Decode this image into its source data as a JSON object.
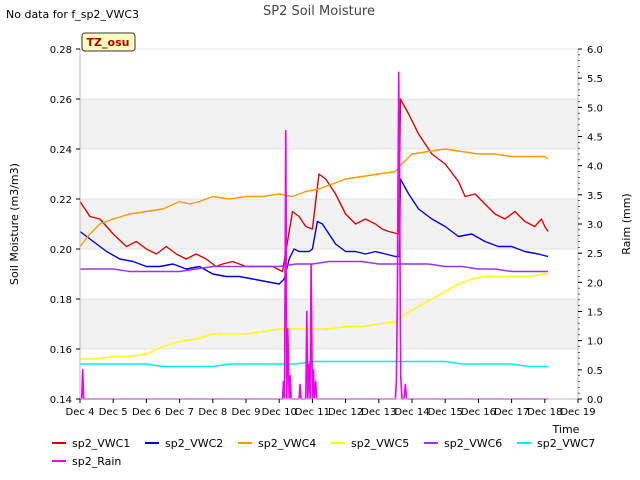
{
  "chart_data": {
    "type": "line",
    "title": "SP2 Soil Moisture",
    "note": "No data for f_sp2_VWC3",
    "site_badge": "TZ_osu",
    "xlabel": "Time",
    "ylabel": "Soil Moisture (m3/m3)",
    "y2label": "Raim (mm)",
    "xlim": [
      4,
      19
    ],
    "ylim": [
      0.14,
      0.28
    ],
    "y2lim": [
      0.0,
      6.0
    ],
    "xticks": [
      4,
      5,
      6,
      7,
      8,
      9,
      10,
      11,
      12,
      13,
      14,
      15,
      16,
      17,
      18,
      19
    ],
    "xtick_labels": [
      "Dec 4",
      "Dec 5",
      "Dec 6",
      "Dec 7",
      "Dec 8",
      "Dec 9",
      "Dec 10",
      "Dec 11",
      "Dec 12",
      "Dec 13",
      "Dec 14",
      "Dec 15",
      "Dec 16",
      "Dec 17",
      "Dec 18",
      "Dec 19"
    ],
    "yticks": [
      0.14,
      0.16,
      0.18,
      0.2,
      0.22,
      0.24,
      0.26,
      0.28
    ],
    "ytick_labels": [
      "0.14",
      "0.16",
      "0.18",
      "0.20",
      "0.22",
      "0.24",
      "0.26",
      "0.28"
    ],
    "y2ticks": [
      0.0,
      0.5,
      1.0,
      1.5,
      2.0,
      2.5,
      3.0,
      3.5,
      4.0,
      4.5,
      5.0,
      5.5,
      6.0
    ],
    "y2tick_labels": [
      "0.0",
      "0.5",
      "1.0",
      "1.5",
      "2.0",
      "2.5",
      "3.0",
      "3.5",
      "4.0",
      "4.5",
      "5.0",
      "5.5",
      "6.0"
    ],
    "grid": "horizontal bands",
    "legend_position": "bottom",
    "series": [
      {
        "name": "sp2_VWC1",
        "color": "#dd0000",
        "axis": "left",
        "x": [
          4.0,
          4.3,
          4.6,
          5.0,
          5.4,
          5.7,
          6.0,
          6.3,
          6.6,
          6.9,
          7.2,
          7.5,
          7.8,
          8.1,
          8.3,
          8.6,
          9.0,
          9.4,
          9.8,
          10.1,
          10.25,
          10.4,
          10.6,
          10.8,
          11.0,
          11.2,
          11.4,
          11.7,
          12.0,
          12.3,
          12.6,
          12.9,
          13.1,
          13.3,
          13.6,
          13.65,
          13.9,
          14.2,
          14.6,
          15.0,
          15.4,
          15.6,
          15.9,
          16.2,
          16.5,
          16.8,
          17.1,
          17.4,
          17.7,
          17.9,
          18.0,
          18.1
        ],
        "y": [
          0.219,
          0.213,
          0.212,
          0.206,
          0.201,
          0.203,
          0.2,
          0.198,
          0.201,
          0.198,
          0.196,
          0.198,
          0.196,
          0.193,
          0.194,
          0.195,
          0.193,
          0.193,
          0.193,
          0.191,
          0.203,
          0.215,
          0.213,
          0.209,
          0.208,
          0.23,
          0.228,
          0.222,
          0.214,
          0.21,
          0.212,
          0.21,
          0.208,
          0.207,
          0.206,
          0.26,
          0.254,
          0.246,
          0.238,
          0.234,
          0.227,
          0.221,
          0.222,
          0.218,
          0.214,
          0.212,
          0.215,
          0.211,
          0.209,
          0.212,
          0.209,
          0.207
        ]
      },
      {
        "name": "sp2_VWC2",
        "color": "#0000cc",
        "axis": "left",
        "x": [
          4.0,
          4.4,
          4.8,
          5.2,
          5.6,
          6.0,
          6.4,
          6.8,
          7.2,
          7.6,
          8.0,
          8.4,
          8.8,
          9.2,
          9.6,
          10.0,
          10.15,
          10.3,
          10.45,
          10.6,
          10.75,
          10.9,
          11.0,
          11.15,
          11.3,
          11.5,
          11.7,
          12.0,
          12.3,
          12.6,
          12.9,
          13.2,
          13.5,
          13.62,
          13.65,
          13.9,
          14.2,
          14.6,
          15.0,
          15.4,
          15.8,
          16.2,
          16.6,
          17.0,
          17.4,
          17.8,
          18.1
        ],
        "y": [
          0.207,
          0.203,
          0.199,
          0.196,
          0.195,
          0.193,
          0.193,
          0.194,
          0.192,
          0.193,
          0.19,
          0.189,
          0.189,
          0.188,
          0.187,
          0.186,
          0.188,
          0.196,
          0.2,
          0.199,
          0.199,
          0.199,
          0.2,
          0.211,
          0.21,
          0.206,
          0.202,
          0.199,
          0.199,
          0.198,
          0.199,
          0.198,
          0.197,
          0.197,
          0.228,
          0.222,
          0.216,
          0.212,
          0.209,
          0.205,
          0.206,
          0.203,
          0.201,
          0.201,
          0.199,
          0.198,
          0.197
        ]
      },
      {
        "name": "sp2_VWC4",
        "color": "#ff9900",
        "axis": "left",
        "x": [
          4.0,
          4.3,
          4.6,
          5.0,
          5.5,
          6.0,
          6.5,
          7.0,
          7.3,
          7.6,
          8.0,
          8.5,
          9.0,
          9.5,
          10.0,
          10.4,
          10.8,
          11.2,
          11.6,
          12.0,
          12.5,
          13.0,
          13.5,
          13.7,
          14.0,
          14.5,
          15.0,
          15.5,
          16.0,
          16.5,
          17.0,
          17.5,
          18.0,
          18.1
        ],
        "y": [
          0.201,
          0.206,
          0.21,
          0.212,
          0.214,
          0.215,
          0.216,
          0.219,
          0.218,
          0.219,
          0.221,
          0.22,
          0.221,
          0.221,
          0.222,
          0.221,
          0.223,
          0.224,
          0.226,
          0.228,
          0.229,
          0.23,
          0.231,
          0.234,
          0.238,
          0.239,
          0.24,
          0.239,
          0.238,
          0.238,
          0.237,
          0.237,
          0.237,
          0.236
        ]
      },
      {
        "name": "sp2_VWC5",
        "color": "#ffff00",
        "axis": "left",
        "x": [
          4.0,
          4.5,
          5.0,
          5.5,
          6.0,
          6.5,
          7.0,
          7.5,
          8.0,
          8.5,
          9.0,
          9.5,
          10.0,
          10.5,
          11.0,
          11.5,
          12.0,
          12.5,
          13.0,
          13.5,
          13.8,
          14.2,
          14.6,
          15.0,
          15.4,
          15.8,
          16.2,
          16.6,
          17.0,
          17.5,
          18.0,
          18.1
        ],
        "y": [
          0.156,
          0.156,
          0.157,
          0.157,
          0.158,
          0.161,
          0.163,
          0.164,
          0.166,
          0.166,
          0.166,
          0.167,
          0.168,
          0.168,
          0.168,
          0.168,
          0.169,
          0.169,
          0.17,
          0.171,
          0.174,
          0.177,
          0.18,
          0.183,
          0.186,
          0.188,
          0.189,
          0.189,
          0.189,
          0.189,
          0.19,
          0.19
        ]
      },
      {
        "name": "sp2_VWC6",
        "color": "#9933ee",
        "axis": "left",
        "x": [
          4.0,
          4.5,
          5.0,
          5.5,
          6.0,
          6.5,
          7.0,
          7.5,
          8.0,
          8.5,
          9.0,
          9.5,
          10.0,
          10.5,
          11.0,
          11.5,
          12.0,
          12.5,
          13.0,
          13.5,
          14.0,
          14.5,
          15.0,
          15.5,
          16.0,
          16.5,
          17.0,
          17.5,
          18.0,
          18.1
        ],
        "y": [
          0.192,
          0.192,
          0.192,
          0.191,
          0.191,
          0.191,
          0.191,
          0.192,
          0.193,
          0.193,
          0.193,
          0.193,
          0.193,
          0.194,
          0.194,
          0.195,
          0.195,
          0.195,
          0.194,
          0.194,
          0.194,
          0.194,
          0.193,
          0.193,
          0.192,
          0.192,
          0.191,
          0.191,
          0.191,
          0.191
        ]
      },
      {
        "name": "sp2_VWC7",
        "color": "#00eeee",
        "axis": "left",
        "x": [
          4.0,
          4.5,
          5.0,
          5.5,
          6.0,
          6.5,
          7.0,
          7.5,
          8.0,
          8.5,
          9.0,
          9.5,
          10.0,
          10.5,
          11.0,
          11.5,
          12.0,
          12.5,
          13.0,
          13.5,
          14.0,
          14.5,
          15.0,
          15.5,
          16.0,
          16.5,
          17.0,
          17.5,
          18.0,
          18.1
        ],
        "y": [
          0.154,
          0.154,
          0.154,
          0.154,
          0.154,
          0.153,
          0.153,
          0.153,
          0.153,
          0.154,
          0.154,
          0.154,
          0.154,
          0.154,
          0.155,
          0.155,
          0.155,
          0.155,
          0.155,
          0.155,
          0.155,
          0.155,
          0.155,
          0.154,
          0.154,
          0.154,
          0.154,
          0.153,
          0.153,
          0.153
        ]
      },
      {
        "name": "sp2_Rain",
        "color": "#ee00ee",
        "axis": "right",
        "x": [
          4.0,
          4.05,
          4.08,
          4.11,
          10.0,
          10.1,
          10.13,
          10.16,
          10.2,
          10.23,
          10.26,
          10.3,
          10.33,
          10.36,
          10.6,
          10.63,
          10.66,
          10.8,
          10.83,
          10.86,
          10.9,
          10.93,
          10.96,
          11.0,
          11.03,
          11.06,
          11.1,
          11.13,
          11.16,
          11.2,
          13.5,
          13.53,
          13.56,
          13.6,
          13.63,
          13.66,
          13.7,
          13.73,
          13.76,
          13.8,
          13.83,
          13.86,
          13.9,
          18.1
        ],
        "y": [
          0.0,
          0.0,
          0.5,
          0.0,
          0.0,
          0.0,
          0.3,
          0.0,
          4.6,
          0.0,
          1.2,
          0.0,
          0.4,
          0.0,
          0.0,
          0.25,
          0.0,
          0.0,
          1.5,
          0.0,
          0.6,
          0.0,
          2.3,
          0.0,
          0.5,
          0.0,
          0.3,
          0.0,
          0.0,
          0.0,
          0.0,
          0.3,
          1.8,
          5.6,
          3.3,
          0.4,
          0.0,
          0.0,
          0.0,
          0.25,
          0.0,
          0.0,
          0.0,
          0.0
        ]
      }
    ]
  }
}
